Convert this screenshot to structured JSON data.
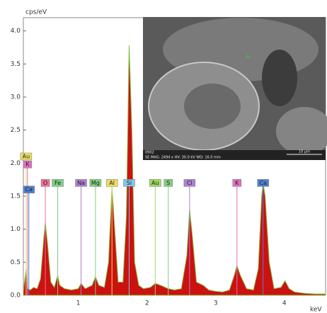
{
  "chart_data": {
    "type": "area",
    "y_label": "cps/eV",
    "x_label": "keV",
    "xlim": [
      0.2,
      4.6
    ],
    "ylim": [
      0,
      4.2
    ],
    "xticks": [
      1,
      2,
      3,
      4
    ],
    "yticks": [
      {
        "value": 0,
        "label": "0.0"
      },
      0.5,
      {
        "value": 1,
        "label": "1.0"
      },
      1.5,
      {
        "value": 2,
        "label": "2.0"
      },
      2.5,
      {
        "value": 3,
        "label": "3.0"
      },
      3.5,
      {
        "value": 4,
        "label": "4.0"
      }
    ],
    "color": "#cc1111",
    "edge_color": "#7fbf3f",
    "x": [
      0.2,
      0.24,
      0.26,
      0.3,
      0.35,
      0.4,
      0.45,
      0.5,
      0.52,
      0.55,
      0.6,
      0.65,
      0.7,
      0.73,
      0.8,
      0.9,
      1.0,
      1.04,
      1.1,
      1.2,
      1.25,
      1.3,
      1.38,
      1.44,
      1.49,
      1.53,
      1.58,
      1.65,
      1.7,
      1.74,
      1.78,
      1.82,
      1.88,
      1.95,
      2.05,
      2.12,
      2.2,
      2.31,
      2.4,
      2.5,
      2.58,
      2.62,
      2.66,
      2.72,
      2.82,
      2.9,
      3.0,
      3.1,
      3.2,
      3.27,
      3.31,
      3.36,
      3.45,
      3.55,
      3.62,
      3.67,
      3.69,
      3.72,
      3.78,
      3.85,
      3.95,
      4.01,
      4.07,
      4.15,
      4.3,
      4.45,
      4.6
    ],
    "values": [
      0.05,
      0.4,
      0.1,
      0.08,
      0.12,
      0.1,
      0.25,
      0.9,
      1.1,
      0.8,
      0.2,
      0.12,
      0.3,
      0.15,
      0.1,
      0.08,
      0.1,
      0.18,
      0.1,
      0.15,
      0.28,
      0.15,
      0.12,
      0.5,
      1.65,
      1.0,
      0.2,
      0.2,
      1.2,
      3.78,
      2.5,
      0.5,
      0.15,
      0.1,
      0.12,
      0.18,
      0.15,
      0.1,
      0.08,
      0.1,
      0.6,
      1.3,
      0.9,
      0.2,
      0.15,
      0.08,
      0.06,
      0.05,
      0.08,
      0.3,
      0.45,
      0.3,
      0.1,
      0.08,
      0.4,
      1.5,
      1.7,
      1.5,
      0.5,
      0.1,
      0.12,
      0.22,
      0.1,
      0.05,
      0.03,
      0.02,
      0.02
    ],
    "stacked_markers": [
      {
        "label": "Au",
        "x": 0.24,
        "y": 2.1,
        "color": "#e8e060"
      },
      {
        "label": "K",
        "x": 0.26,
        "y": 1.98,
        "color": "#e070c0"
      },
      {
        "label": "Ca",
        "x": 0.28,
        "y": 1.6,
        "color": "#5080d0"
      }
    ],
    "marker_row_y": 1.7,
    "markers": [
      {
        "label": "O",
        "x": 0.52,
        "color": "#f07090"
      },
      {
        "label": "Fe",
        "x": 0.7,
        "color": "#80d080"
      },
      {
        "label": "Na",
        "x": 1.04,
        "color": "#b080d0"
      },
      {
        "label": "Mg",
        "x": 1.25,
        "color": "#80d080"
      },
      {
        "label": "Al",
        "x": 1.49,
        "color": "#e8e060"
      },
      {
        "label": "Si",
        "x": 1.74,
        "color": "#80c8e8"
      },
      {
        "label": "Au",
        "x": 2.12,
        "color": "#a0d860"
      },
      {
        "label": "S",
        "x": 2.31,
        "color": "#80d080"
      },
      {
        "label": "Cl",
        "x": 2.62,
        "color": "#b080d0"
      },
      {
        "label": "K",
        "x": 3.31,
        "color": "#e070c0"
      },
      {
        "label": "Ca",
        "x": 3.69,
        "color": "#5080d0"
      }
    ]
  },
  "inset": {
    "id": "0902",
    "info": "SE MAG: 2494 x HV: 30.0 kV WD: 16.0 mm",
    "scale": "10 µm"
  }
}
